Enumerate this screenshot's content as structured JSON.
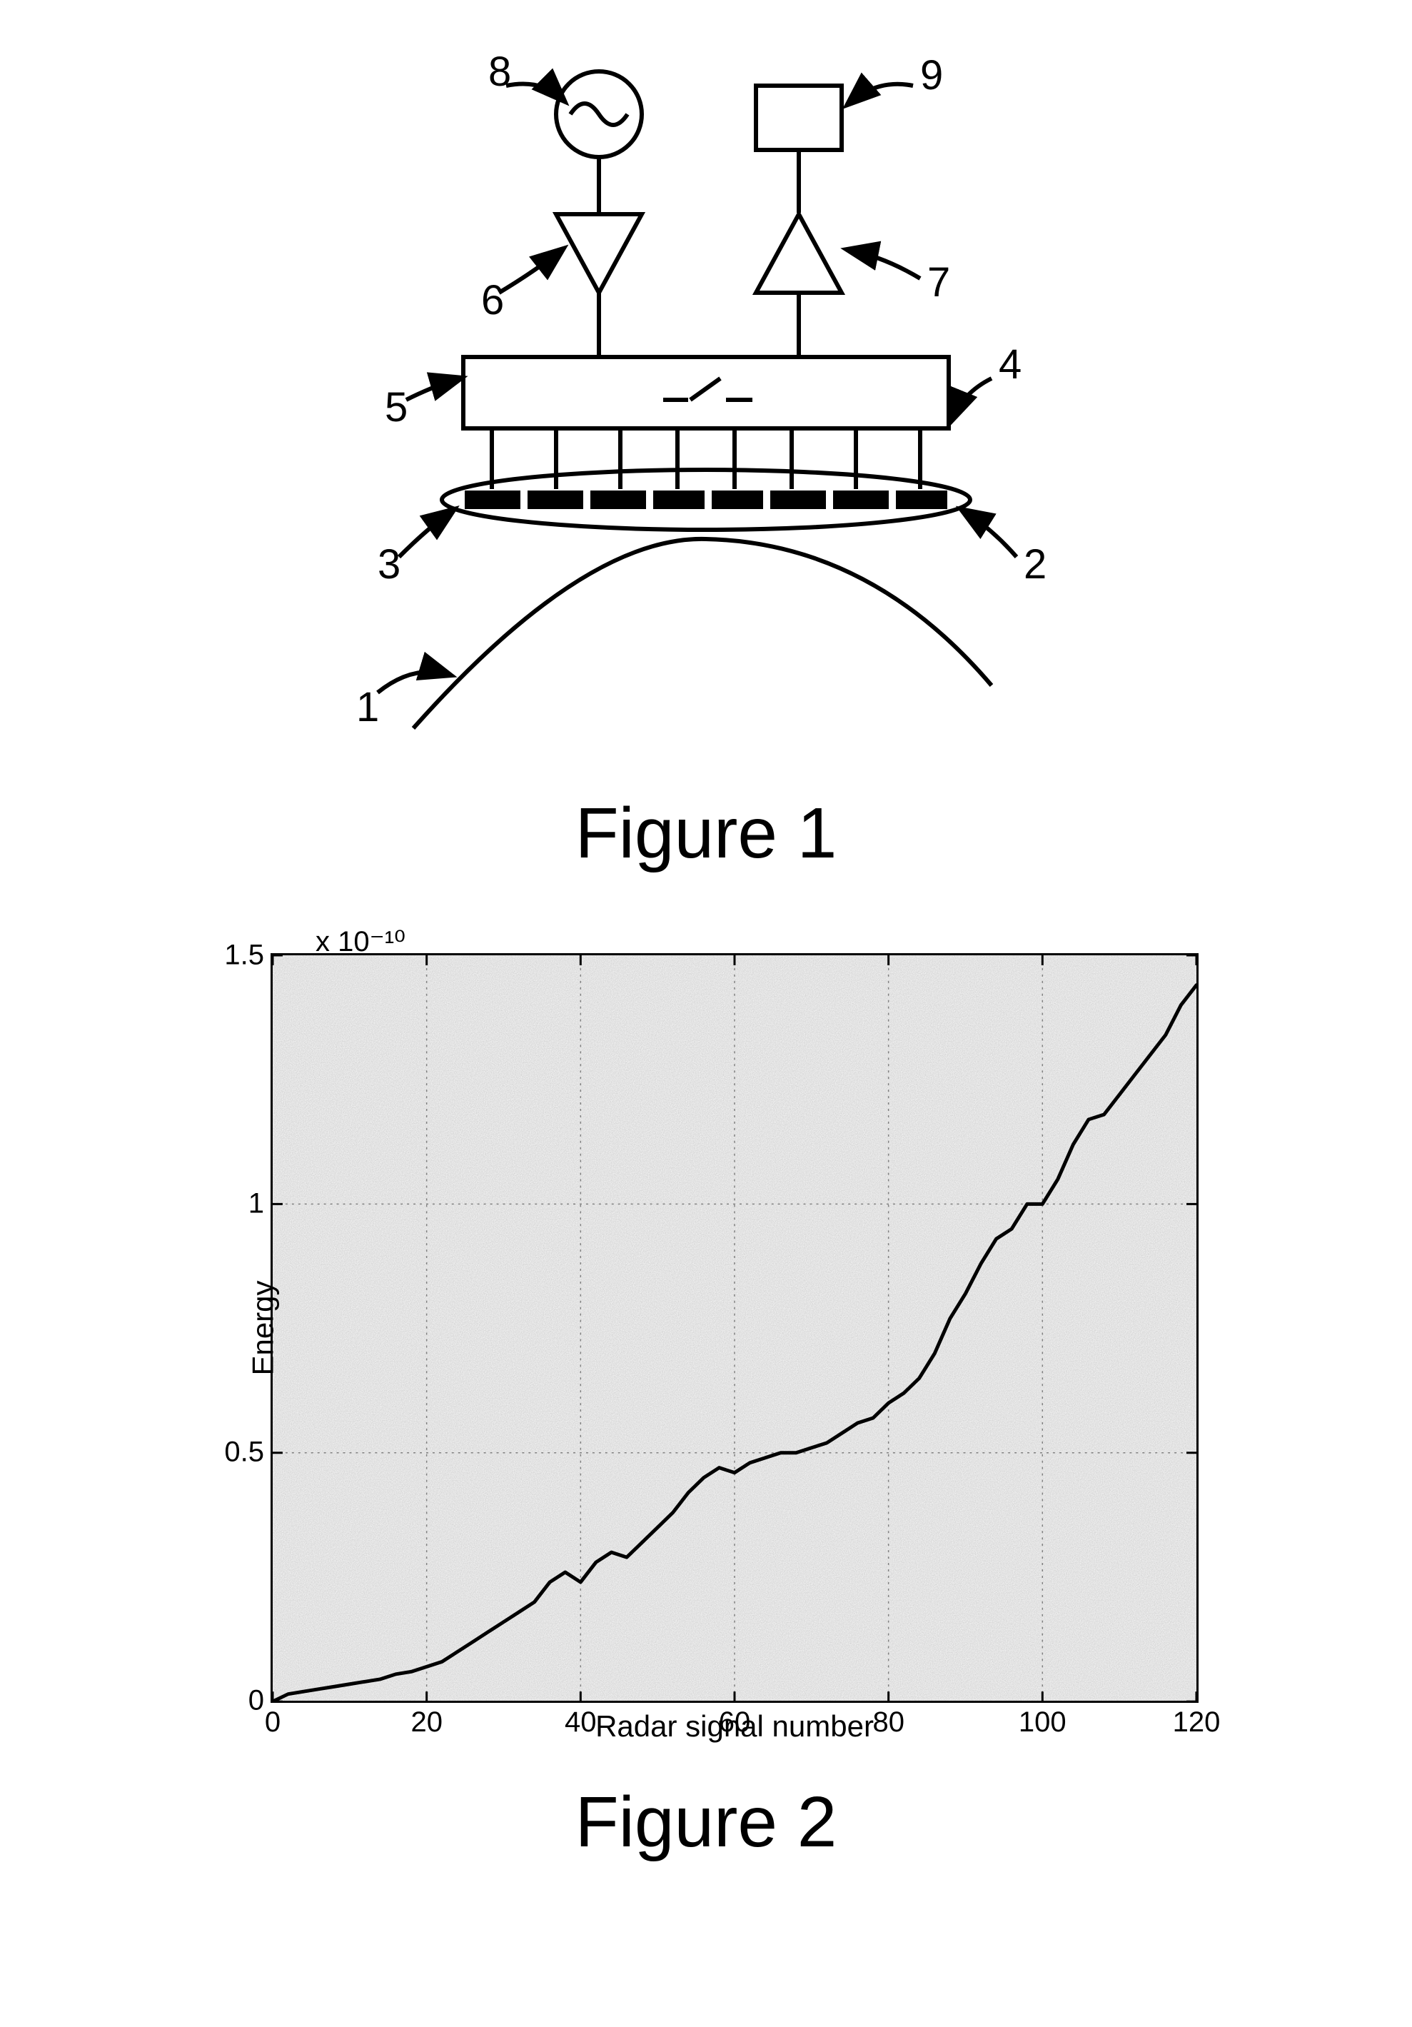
{
  "figure1": {
    "caption": "Figure 1",
    "type": "block-diagram",
    "stroke_color": "#000000",
    "stroke_width": 6,
    "font_size": 58,
    "callouts": [
      "1",
      "2",
      "3",
      "4",
      "5",
      "6",
      "7",
      "8",
      "9"
    ],
    "elements": {
      "8": "sine-source-circle",
      "9": "rect-block",
      "6": "down-triangle-amp",
      "7": "up-triangle-amp",
      "5": "switch-box",
      "4": "leads-to-array",
      "3": "array-ellipse-left",
      "2": "array-ellipse-right",
      "1": "curved-surface"
    }
  },
  "figure2": {
    "caption": "Figure 2",
    "type": "line",
    "xlabel": "Radar signal number",
    "ylabel": "Energy",
    "exp_label": "x 10⁻¹⁰",
    "xlim": [
      0,
      120
    ],
    "ylim": [
      0,
      1.5
    ],
    "xtick_step": 20,
    "xticks": [
      0,
      20,
      40,
      60,
      80,
      100,
      120
    ],
    "ytick_step": 0.5,
    "yticks": [
      0,
      0.5,
      1,
      1.5
    ],
    "line_color": "#000000",
    "line_width": 5,
    "grid_color": "#808080",
    "grid_dash": "3 6",
    "background_color": "#ffffff",
    "label_fontsize": 42,
    "tick_fontsize": 40,
    "noise_opacity": 0.22,
    "series": {
      "x": [
        0,
        2,
        4,
        6,
        8,
        10,
        12,
        14,
        16,
        18,
        20,
        22,
        24,
        26,
        28,
        30,
        32,
        34,
        36,
        38,
        40,
        42,
        44,
        46,
        48,
        50,
        52,
        54,
        56,
        58,
        60,
        62,
        64,
        66,
        68,
        70,
        72,
        74,
        76,
        78,
        80,
        82,
        84,
        86,
        88,
        90,
        92,
        94,
        96,
        98,
        100,
        102,
        104,
        106,
        108,
        110,
        112,
        114,
        116,
        118,
        120,
        122
      ],
      "y": [
        0.0,
        0.015,
        0.02,
        0.025,
        0.03,
        0.035,
        0.04,
        0.045,
        0.055,
        0.06,
        0.07,
        0.08,
        0.1,
        0.12,
        0.14,
        0.16,
        0.18,
        0.2,
        0.24,
        0.26,
        0.24,
        0.28,
        0.3,
        0.29,
        0.32,
        0.35,
        0.38,
        0.42,
        0.45,
        0.47,
        0.46,
        0.48,
        0.49,
        0.5,
        0.5,
        0.51,
        0.52,
        0.54,
        0.56,
        0.57,
        0.6,
        0.62,
        0.65,
        0.7,
        0.77,
        0.82,
        0.88,
        0.93,
        0.95,
        1.0,
        1.0,
        1.05,
        1.12,
        1.17,
        1.18,
        1.22,
        1.26,
        1.3,
        1.34,
        1.4,
        1.44,
        1.45
      ]
    }
  }
}
